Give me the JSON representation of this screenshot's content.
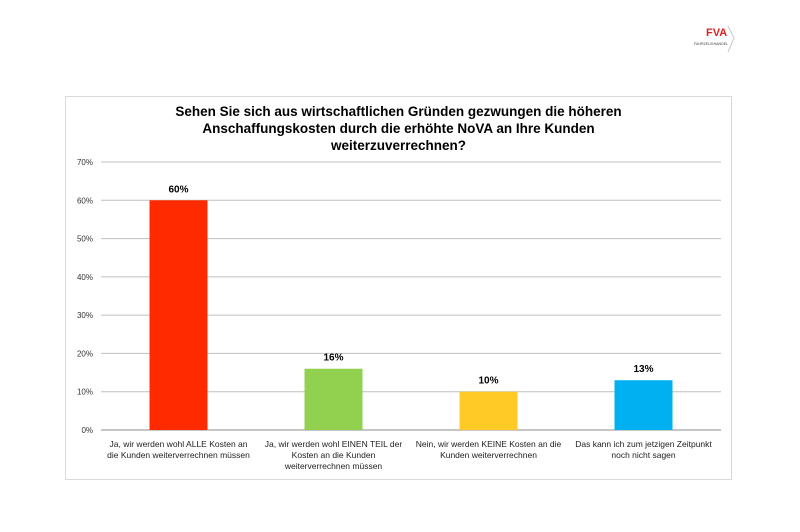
{
  "logo": {
    "text": "FVA",
    "subtext": "FAHRZEUGHANDEL"
  },
  "chart_data": {
    "type": "bar",
    "title_lines": [
      "Sehen Sie sich aus wirtschaftlichen Gründen gezwungen die höheren",
      "Anschaffungskosten durch die erhöhte NoVA an Ihre Kunden",
      "weiterzuverrechnen?"
    ],
    "categories": [
      "Ja, wir werden wohl ALLE Kosten an die Kunden weiterverrechnen müssen",
      "Ja, wir werden wohl EINEN TEIL der Kosten an die Kunden weiterverrechnen müssen",
      "Nein, wir werden KEINE Kosten an die Kunden weiterverrechnen",
      "Das kann ich zum jetzigen Zeitpunkt noch nicht sagen"
    ],
    "values": [
      60,
      16,
      10,
      13
    ],
    "value_labels": [
      "60%",
      "16%",
      "10%",
      "13%"
    ],
    "bar_colors": [
      "#ff2a00",
      "#92d050",
      "#ffc926",
      "#00b0f0"
    ],
    "ylim": [
      0,
      70
    ],
    "yticks": [
      0,
      10,
      20,
      30,
      40,
      50,
      60,
      70
    ],
    "ytick_labels": [
      "0%",
      "10%",
      "20%",
      "30%",
      "40%",
      "50%",
      "60%",
      "70%"
    ],
    "grid": true,
    "xlabel": "",
    "ylabel": ""
  }
}
